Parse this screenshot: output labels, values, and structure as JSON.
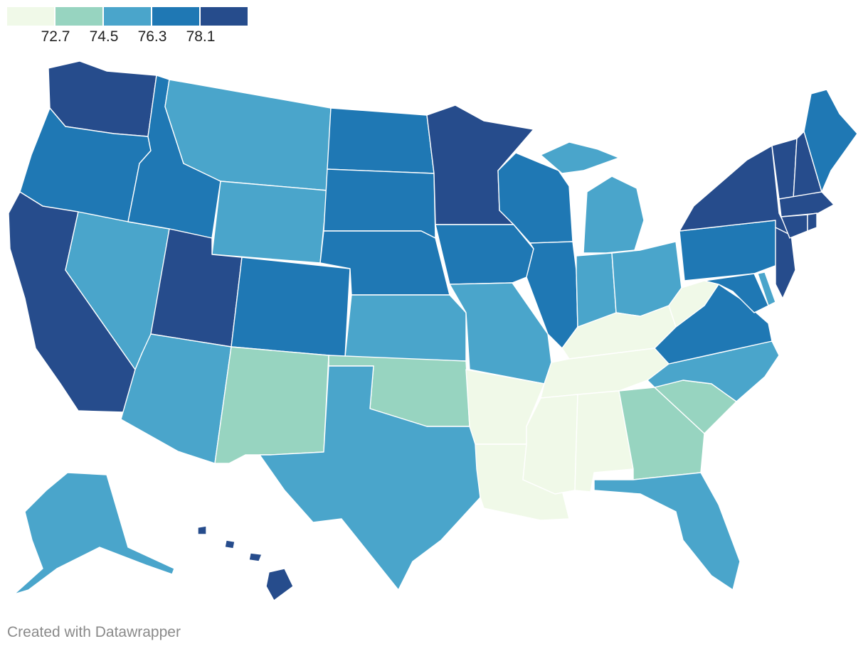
{
  "legend": {
    "colors": [
      "#f0f9e8",
      "#97d4c0",
      "#4aa5cb",
      "#1f78b4",
      "#264c8c"
    ],
    "labels": [
      "72.7",
      "74.5",
      "76.3",
      "78.1"
    ]
  },
  "credit": "Created with Datawrapper",
  "map_data": {
    "regions": [
      {
        "state": "Washington",
        "tier": 4
      },
      {
        "state": "Oregon",
        "tier": 3
      },
      {
        "state": "California",
        "tier": 4
      },
      {
        "state": "Nevada",
        "tier": 2
      },
      {
        "state": "Idaho",
        "tier": 3
      },
      {
        "state": "Montana",
        "tier": 2
      },
      {
        "state": "Wyoming",
        "tier": 2
      },
      {
        "state": "Utah",
        "tier": 4
      },
      {
        "state": "Arizona",
        "tier": 2
      },
      {
        "state": "Colorado",
        "tier": 3
      },
      {
        "state": "New Mexico",
        "tier": 1
      },
      {
        "state": "North Dakota",
        "tier": 3
      },
      {
        "state": "South Dakota",
        "tier": 3
      },
      {
        "state": "Nebraska",
        "tier": 3
      },
      {
        "state": "Kansas",
        "tier": 2
      },
      {
        "state": "Oklahoma",
        "tier": 1
      },
      {
        "state": "Texas",
        "tier": 2
      },
      {
        "state": "Minnesota",
        "tier": 4
      },
      {
        "state": "Iowa",
        "tier": 3
      },
      {
        "state": "Missouri",
        "tier": 2
      },
      {
        "state": "Arkansas",
        "tier": 0
      },
      {
        "state": "Louisiana",
        "tier": 0
      },
      {
        "state": "Wisconsin",
        "tier": 3
      },
      {
        "state": "Illinois",
        "tier": 3
      },
      {
        "state": "Michigan",
        "tier": 2
      },
      {
        "state": "Indiana",
        "tier": 2
      },
      {
        "state": "Ohio",
        "tier": 2
      },
      {
        "state": "Kentucky",
        "tier": 0
      },
      {
        "state": "Tennessee",
        "tier": 0
      },
      {
        "state": "Mississippi",
        "tier": 0
      },
      {
        "state": "Alabama",
        "tier": 0
      },
      {
        "state": "Georgia",
        "tier": 1
      },
      {
        "state": "Florida",
        "tier": 2
      },
      {
        "state": "South Carolina",
        "tier": 1
      },
      {
        "state": "North Carolina",
        "tier": 2
      },
      {
        "state": "Virginia",
        "tier": 3
      },
      {
        "state": "West Virginia",
        "tier": 0
      },
      {
        "state": "Pennsylvania",
        "tier": 3
      },
      {
        "state": "Maryland",
        "tier": 3
      },
      {
        "state": "Delaware",
        "tier": 2
      },
      {
        "state": "New Jersey",
        "tier": 4
      },
      {
        "state": "New York",
        "tier": 4
      },
      {
        "state": "Connecticut",
        "tier": 4
      },
      {
        "state": "Rhode Island",
        "tier": 4
      },
      {
        "state": "Massachusetts",
        "tier": 4
      },
      {
        "state": "Vermont",
        "tier": 4
      },
      {
        "state": "New Hampshire",
        "tier": 4
      },
      {
        "state": "Maine",
        "tier": 3
      },
      {
        "state": "Alaska",
        "tier": 2
      },
      {
        "state": "Hawaii",
        "tier": 4
      }
    ]
  }
}
